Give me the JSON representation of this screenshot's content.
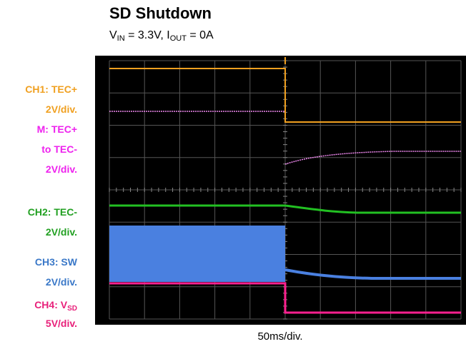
{
  "chart_data": {
    "type": "line",
    "title": "SD Shutdown",
    "subtitle": [
      "V",
      "IN",
      " = 3.3V, I",
      "OUT",
      " = 0A"
    ],
    "xlabel": "50ms/div.",
    "channels": [
      {
        "lines": [
          "CH1: TEC+",
          "2V/div."
        ],
        "color": "#f0a020"
      },
      {
        "lines": [
          "M: TEC+",
          "to TEC-",
          "2V/div."
        ],
        "color": "#ee22ee"
      },
      {
        "lines": [
          "CH2: TEC-",
          "2V/div."
        ],
        "color": "#22a022"
      },
      {
        "lines": [
          "CH3: SW",
          "2V/div."
        ],
        "color": "#3a78c8"
      },
      {
        "lines": [
          [
            "CH4: V",
            "SD"
          ],
          "5V/div."
        ],
        "color": "#e8207a"
      }
    ]
  }
}
